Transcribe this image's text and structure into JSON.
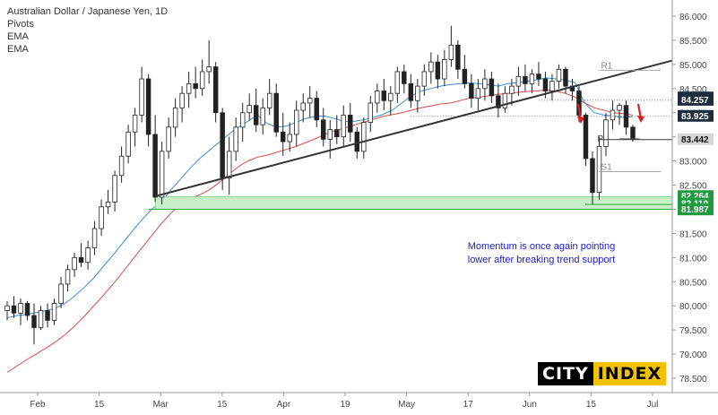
{
  "legend": {
    "title": "Australian Dollar / Japanese Yen, 1D",
    "line2": "Pivots",
    "line3": "EMA",
    "line4": "EMA"
  },
  "annotation": {
    "line1": "Momentum is once again pointing",
    "line2": "lower after breaking trend support"
  },
  "logo": {
    "part1": "CITY",
    "part2": "INDEX"
  },
  "colors": {
    "bull": "#6fa0d0",
    "bear": "#222222",
    "ema_fast": "#3d8bd8",
    "ema_slow": "#d94a4a",
    "trendline": "#333333",
    "support_zone": "#c8f0c8",
    "support_line": "#2fa82f",
    "arrow": "#d81e1e"
  },
  "chart_data": {
    "type": "candlestick",
    "title": "Australian Dollar / Japanese Yen, 1D",
    "ylim": [
      78.45,
      86.15
    ],
    "grid": false,
    "y_ticks": [
      "86.000",
      "85.500",
      "85.000",
      "84.500",
      "84.000",
      "83.500",
      "83.000",
      "82.500",
      "82.000",
      "81.500",
      "81.000",
      "80.500",
      "80.000",
      "79.500",
      "79.000",
      "78.500"
    ],
    "x_ticks": [
      "Feb",
      "15",
      "Mar",
      "15",
      "Apr",
      "19",
      "May",
      "17",
      "Jun",
      "15",
      "Jul"
    ],
    "price_labels": [
      {
        "text": "84.307",
        "value": 84.307,
        "style": "dark"
      },
      {
        "text": "84.257",
        "value": 84.257,
        "style": "dark"
      },
      {
        "text": "83.925",
        "value": 83.925,
        "style": "dark"
      },
      {
        "text": "83.442",
        "value": 83.442,
        "style": "grey"
      },
      {
        "text": "82.264",
        "value": 82.264,
        "style": "green"
      },
      {
        "text": "82.110",
        "value": 82.11,
        "style": "green"
      },
      {
        "text": "81.987",
        "value": 81.987,
        "style": "green"
      }
    ],
    "pivots": [
      {
        "name": "R1",
        "value": 84.88
      },
      {
        "name": "P",
        "value": 83.46
      },
      {
        "name": "S1",
        "value": 82.78
      }
    ],
    "support_zone": [
      82.0,
      82.26
    ],
    "trendline": {
      "start_date": "Mar 23",
      "start": 82.27,
      "end_date": "Jul 10",
      "end": 85.08
    },
    "ema_fast": [
      79.75,
      79.8,
      79.82,
      79.86,
      79.9,
      79.95,
      80.05,
      80.2,
      80.38,
      80.58,
      80.82,
      81.05,
      81.3,
      81.55,
      81.78,
      82.0,
      82.15,
      82.4,
      82.62,
      82.85,
      83.05,
      83.22,
      83.38,
      83.55,
      83.7,
      83.82,
      83.95,
      83.78,
      83.7,
      83.72,
      83.8,
      83.88,
      83.92,
      83.93,
      83.88,
      83.82,
      83.82,
      83.85,
      83.9,
      83.96,
      84.05,
      84.2,
      84.35,
      84.45,
      84.5,
      84.55,
      84.58,
      84.6,
      84.62,
      84.6,
      84.58,
      84.55,
      84.6,
      84.62,
      84.65,
      84.68,
      84.72,
      84.7,
      84.68,
      84.62,
      84.2,
      84.0,
      83.95,
      83.93,
      83.9,
      83.92
    ],
    "ema_slow": [
      78.62,
      78.75,
      78.88,
      79.0,
      79.12,
      79.25,
      79.4,
      79.58,
      79.78,
      80.0,
      80.22,
      80.45,
      80.7,
      80.95,
      81.2,
      81.45,
      81.7,
      81.92,
      82.1,
      82.22,
      82.3,
      82.4,
      82.55,
      82.72,
      82.88,
      83.0,
      83.08,
      83.12,
      83.18,
      83.24,
      83.3,
      83.38,
      83.46,
      83.55,
      83.62,
      83.68,
      83.74,
      83.8,
      83.86,
      83.92,
      83.96,
      84.0,
      84.05,
      84.1,
      84.14,
      84.18,
      84.2,
      84.25,
      84.3,
      84.32,
      84.35,
      84.38,
      84.4,
      84.42,
      84.44,
      84.45,
      84.47,
      84.45,
      84.4,
      84.32,
      84.2,
      84.1,
      84.05,
      84.0,
      83.98,
      83.95
    ],
    "candles": [
      [
        79.9,
        80.1,
        79.7,
        80.0
      ],
      [
        80.0,
        80.2,
        79.75,
        79.85
      ],
      [
        79.85,
        80.15,
        79.6,
        80.05
      ],
      [
        80.05,
        80.1,
        79.7,
        79.8
      ],
      [
        79.8,
        80.05,
        79.2,
        79.55
      ],
      [
        79.55,
        80.0,
        79.5,
        79.9
      ],
      [
        79.9,
        80.05,
        79.55,
        79.7
      ],
      [
        79.7,
        80.15,
        79.6,
        80.05
      ],
      [
        80.05,
        80.6,
        79.95,
        80.45
      ],
      [
        80.45,
        80.85,
        80.3,
        80.75
      ],
      [
        80.75,
        81.1,
        80.6,
        81.0
      ],
      [
        81.0,
        81.3,
        80.8,
        80.9
      ],
      [
        80.9,
        81.35,
        80.75,
        81.2
      ],
      [
        81.2,
        81.75,
        81.05,
        81.6
      ],
      [
        81.6,
        82.2,
        81.45,
        82.05
      ],
      [
        82.05,
        82.4,
        81.9,
        82.15
      ],
      [
        82.15,
        82.8,
        81.95,
        82.7
      ],
      [
        82.7,
        83.3,
        82.55,
        83.1
      ],
      [
        83.1,
        83.75,
        82.95,
        83.6
      ],
      [
        83.6,
        84.1,
        83.3,
        83.95
      ],
      [
        83.95,
        84.95,
        83.8,
        84.7
      ],
      [
        84.7,
        84.8,
        83.3,
        83.55
      ],
      [
        83.55,
        83.95,
        82.15,
        82.25
      ],
      [
        82.25,
        83.4,
        82.1,
        83.2
      ],
      [
        83.2,
        83.9,
        83.05,
        83.7
      ],
      [
        83.7,
        84.3,
        83.5,
        84.1
      ],
      [
        84.1,
        84.55,
        83.8,
        84.4
      ],
      [
        84.4,
        84.85,
        84.1,
        84.6
      ],
      [
        84.6,
        84.95,
        84.3,
        84.5
      ],
      [
        84.5,
        85.1,
        84.35,
        84.85
      ],
      [
        84.85,
        85.5,
        84.6,
        84.95
      ],
      [
        84.95,
        85.05,
        83.8,
        84.0
      ],
      [
        84.0,
        84.1,
        82.4,
        82.65
      ],
      [
        82.65,
        83.5,
        82.3,
        83.2
      ],
      [
        83.2,
        83.9,
        83.0,
        83.7
      ],
      [
        83.7,
        84.2,
        83.4,
        84.0
      ],
      [
        84.0,
        84.4,
        83.85,
        84.15
      ],
      [
        84.15,
        84.5,
        83.6,
        83.75
      ],
      [
        83.75,
        84.3,
        83.55,
        84.1
      ],
      [
        84.1,
        84.7,
        83.95,
        84.4
      ],
      [
        84.4,
        84.6,
        83.5,
        83.6
      ],
      [
        83.6,
        84.0,
        83.1,
        83.4
      ],
      [
        83.4,
        83.8,
        83.2,
        83.55
      ],
      [
        83.55,
        84.25,
        83.3,
        84.05
      ],
      [
        84.05,
        84.4,
        83.8,
        84.2
      ],
      [
        84.2,
        84.55,
        83.9,
        84.3
      ],
      [
        84.3,
        84.45,
        83.7,
        83.85
      ],
      [
        83.85,
        84.1,
        83.3,
        83.45
      ],
      [
        83.45,
        83.85,
        83.05,
        83.65
      ],
      [
        83.65,
        83.95,
        83.35,
        83.5
      ],
      [
        83.5,
        84.15,
        83.3,
        83.95
      ],
      [
        83.95,
        84.2,
        83.4,
        83.6
      ],
      [
        83.6,
        83.7,
        83.05,
        83.2
      ],
      [
        83.2,
        83.9,
        83.05,
        83.8
      ],
      [
        83.8,
        84.35,
        83.6,
        84.2
      ],
      [
        84.2,
        84.6,
        84.0,
        84.45
      ],
      [
        84.45,
        84.7,
        84.05,
        84.25
      ],
      [
        84.25,
        84.55,
        83.95,
        84.4
      ],
      [
        84.4,
        84.95,
        84.2,
        84.85
      ],
      [
        84.85,
        85.0,
        84.4,
        84.6
      ],
      [
        84.6,
        84.8,
        84.1,
        84.25
      ],
      [
        84.25,
        84.7,
        84.0,
        84.55
      ],
      [
        84.55,
        85.0,
        84.35,
        84.85
      ],
      [
        84.85,
        85.25,
        84.6,
        85.05
      ],
      [
        85.05,
        85.2,
        84.5,
        84.7
      ],
      [
        84.7,
        85.3,
        84.55,
        85.1
      ],
      [
        85.1,
        85.8,
        84.95,
        85.4
      ],
      [
        85.4,
        85.5,
        84.7,
        84.9
      ],
      [
        84.9,
        85.2,
        84.5,
        84.6
      ],
      [
        84.6,
        84.8,
        84.1,
        84.3
      ],
      [
        84.3,
        84.7,
        84.05,
        84.5
      ],
      [
        84.5,
        84.9,
        84.25,
        84.7
      ],
      [
        84.7,
        84.85,
        84.2,
        84.35
      ],
      [
        84.35,
        84.6,
        83.9,
        84.1
      ],
      [
        84.1,
        84.55,
        84.0,
        84.4
      ],
      [
        84.4,
        84.7,
        84.15,
        84.55
      ],
      [
        84.55,
        84.95,
        84.35,
        84.75
      ],
      [
        84.75,
        85.0,
        84.45,
        84.6
      ],
      [
        84.6,
        84.9,
        84.4,
        84.8
      ],
      [
        84.8,
        85.05,
        84.55,
        84.7
      ],
      [
        84.7,
        84.85,
        84.3,
        84.45
      ],
      [
        84.45,
        84.8,
        84.25,
        84.65
      ],
      [
        84.65,
        85.0,
        84.5,
        84.9
      ],
      [
        84.9,
        84.95,
        84.4,
        84.55
      ],
      [
        84.55,
        84.7,
        84.25,
        84.45
      ],
      [
        84.45,
        84.55,
        83.8,
        83.95
      ],
      [
        83.95,
        84.0,
        82.9,
        83.05
      ],
      [
        83.05,
        83.2,
        82.1,
        82.35
      ],
      [
        82.35,
        83.5,
        82.2,
        83.3
      ],
      [
        83.3,
        84.0,
        83.1,
        83.85
      ],
      [
        83.85,
        84.25,
        83.65,
        84.05
      ],
      [
        84.05,
        84.2,
        83.75,
        84.15
      ],
      [
        84.15,
        84.25,
        83.55,
        83.7
      ],
      [
        83.7,
        83.75,
        83.4,
        83.45
      ]
    ]
  }
}
